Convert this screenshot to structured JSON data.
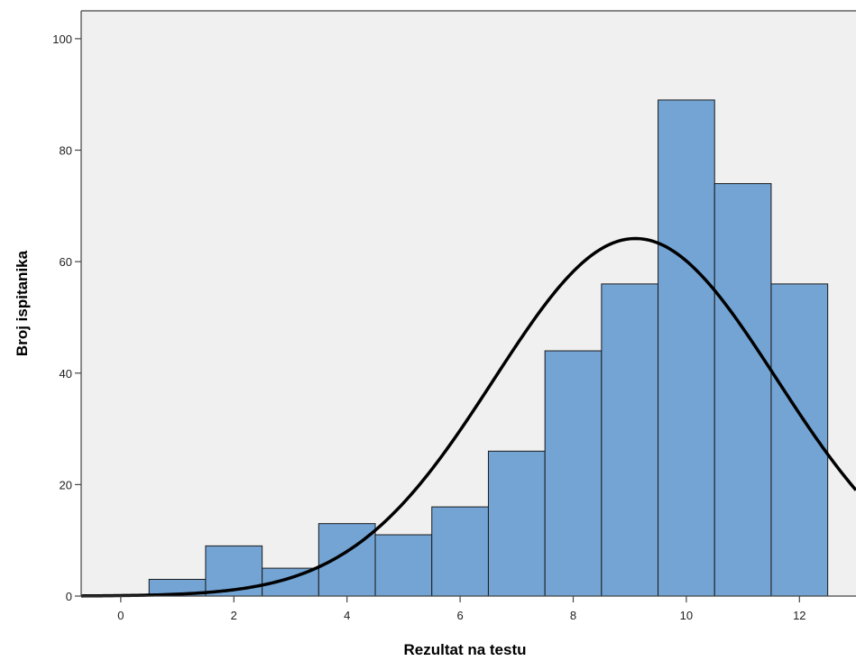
{
  "chart_data": {
    "type": "bar",
    "subtype": "histogram-with-normal-curve",
    "xlabel": "Rezultat na testu",
    "ylabel": "Broj ispitanika",
    "xlim": [
      -0.7,
      13.0
    ],
    "ylim": [
      0,
      105
    ],
    "x_ticks": [
      0,
      2,
      4,
      6,
      8,
      10,
      12
    ],
    "y_ticks": [
      0,
      20,
      40,
      60,
      80,
      100
    ],
    "bin_width": 1,
    "bins": [
      1,
      2,
      3,
      4,
      5,
      6,
      7,
      8,
      9,
      10,
      11,
      12
    ],
    "values": [
      3,
      9,
      5,
      13,
      11,
      16,
      26,
      44,
      56,
      89,
      74,
      56
    ],
    "normal_curve": {
      "mean": 9.1,
      "sd": 2.5,
      "n": 402
    },
    "grid": false,
    "legend": "none",
    "colors": {
      "bar_fill": "#73a4d4",
      "bar_stroke": "#1a1a1a",
      "plot_background": "#f0f0f0",
      "curve": "#000000",
      "axis": "#444444"
    }
  }
}
